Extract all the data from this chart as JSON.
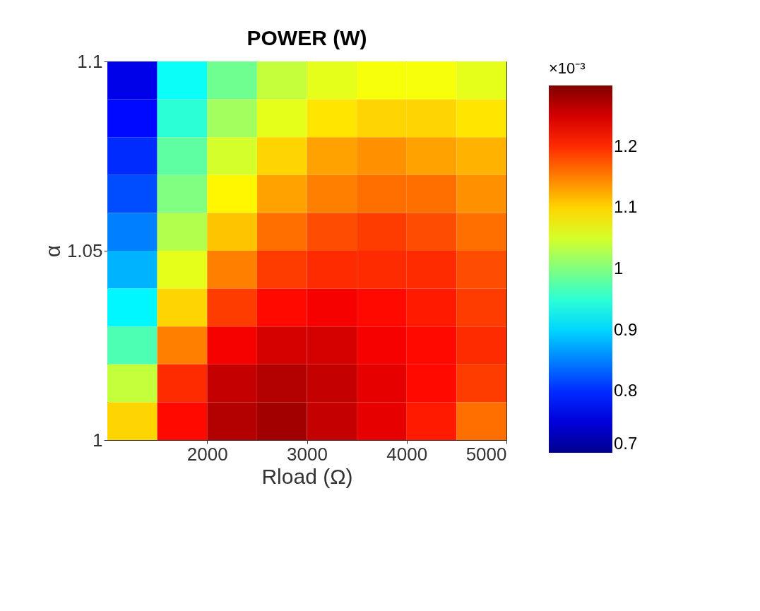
{
  "chart_data": {
    "type": "heatmap",
    "title": "POWER (W)",
    "xlabel": "Rload (Ω)",
    "ylabel": "α",
    "clabel": "×10⁻³",
    "x": [
      1250,
      1750,
      2250,
      2750,
      3250,
      3750,
      4250,
      4750
    ],
    "cells": [
      [
        0.76,
        0.93,
        0.99,
        1.04,
        1.06,
        1.07,
        1.07,
        1.06
      ],
      [
        0.78,
        0.95,
        1.02,
        1.06,
        1.09,
        1.1,
        1.1,
        1.09
      ],
      [
        0.8,
        0.98,
        1.05,
        1.1,
        1.13,
        1.14,
        1.13,
        1.12
      ],
      [
        0.82,
        1.0,
        1.08,
        1.13,
        1.15,
        1.16,
        1.16,
        1.14
      ],
      [
        0.85,
        1.03,
        1.11,
        1.16,
        1.18,
        1.19,
        1.18,
        1.16
      ],
      [
        0.88,
        1.06,
        1.15,
        1.19,
        1.2,
        1.2,
        1.2,
        1.18
      ],
      [
        0.92,
        1.1,
        1.19,
        1.22,
        1.23,
        1.22,
        1.21,
        1.19
      ],
      [
        0.97,
        1.15,
        1.23,
        1.25,
        1.25,
        1.23,
        1.22,
        1.2
      ],
      [
        1.04,
        1.2,
        1.26,
        1.27,
        1.26,
        1.24,
        1.22,
        1.19
      ],
      [
        1.1,
        1.22,
        1.27,
        1.28,
        1.26,
        1.24,
        1.21,
        1.16
      ]
    ],
    "xlim": [
      1000,
      5000
    ],
    "xticks": [
      2000,
      3000,
      4000,
      5000
    ],
    "ylim": [
      1,
      1.1
    ],
    "yticks": [
      1,
      1.05,
      1.1
    ],
    "clim": [
      0.7,
      1.3
    ],
    "cticks": [
      0.7,
      0.8,
      0.9,
      1,
      1.1,
      1.2
    ],
    "grid": false
  }
}
